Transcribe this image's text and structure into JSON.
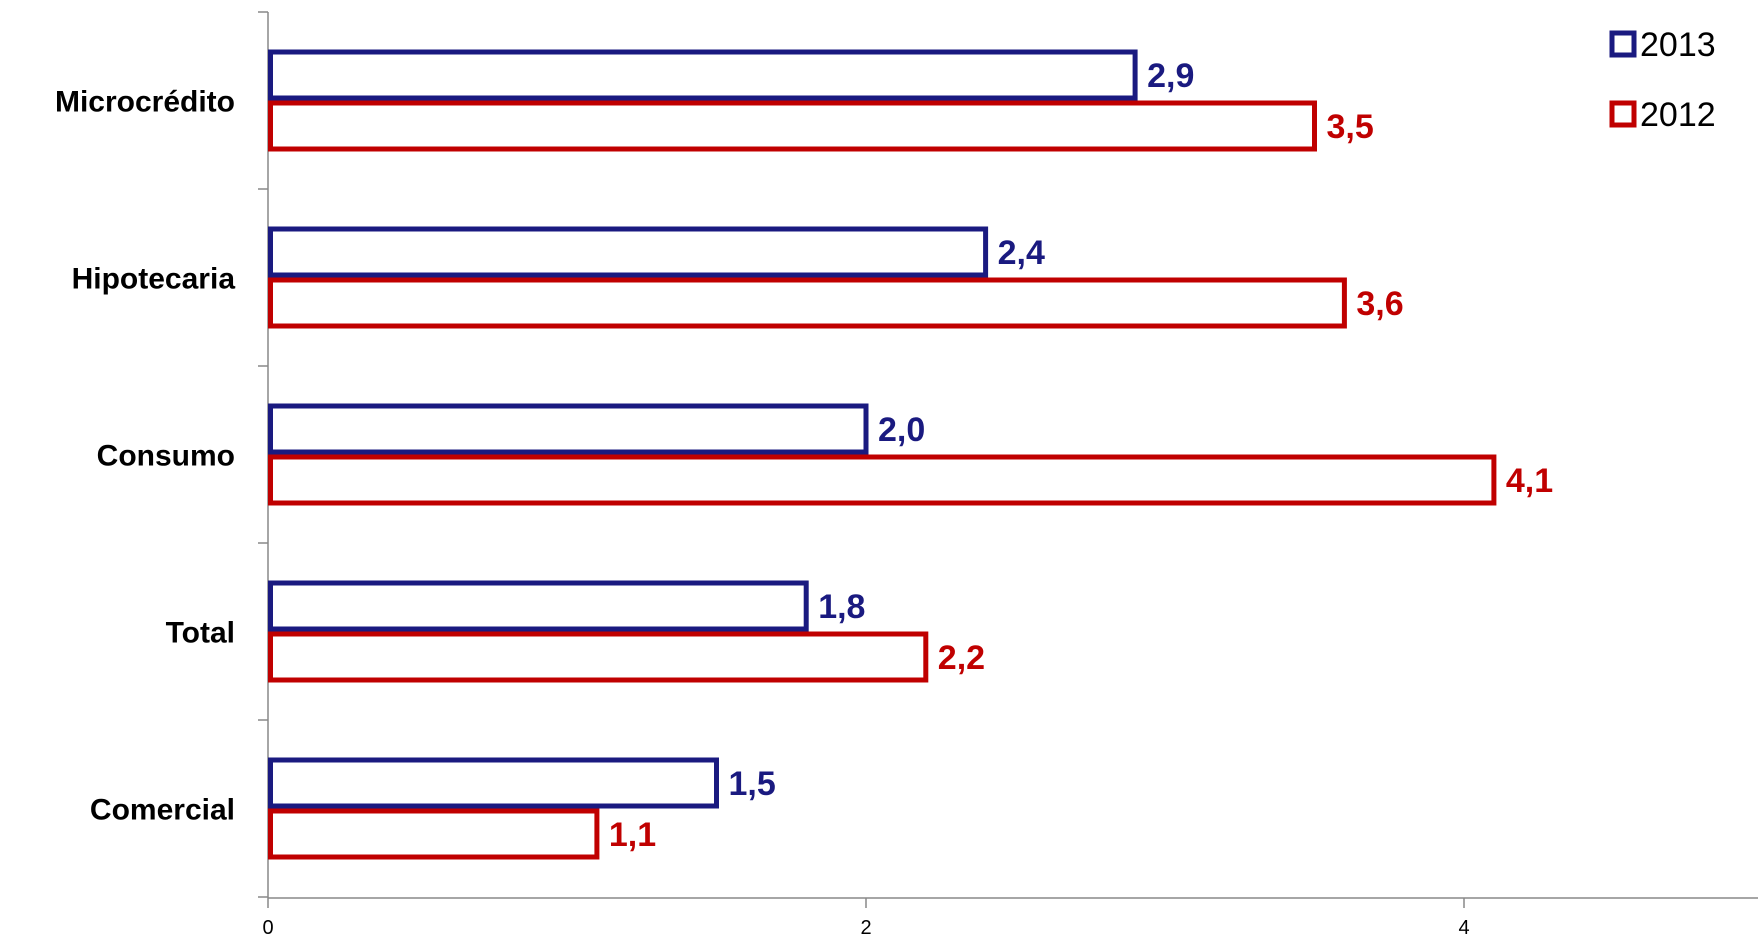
{
  "chart_data": {
    "type": "bar",
    "orientation": "horizontal",
    "categories": [
      "Microcrédito",
      "Hipotecaria",
      "Consumo",
      "Total",
      "Comercial"
    ],
    "series": [
      {
        "name": "2013",
        "color": "#1a1a80",
        "values": [
          2.9,
          2.4,
          2.0,
          1.8,
          1.5
        ],
        "labels": [
          "2,9",
          "2,4",
          "2,0",
          "1,8",
          "1,5"
        ]
      },
      {
        "name": "2012",
        "color": "#c00000",
        "values": [
          3.5,
          3.6,
          4.1,
          2.2,
          1.1
        ],
        "labels": [
          "3,5",
          "3,6",
          "4,1",
          "2,2",
          "1,1"
        ]
      }
    ],
    "xlim": [
      0,
      5
    ],
    "xticks": [
      "0",
      "2",
      "4"
    ],
    "title": "",
    "xlabel": "",
    "ylabel": "",
    "grid": false,
    "bar_fill": "none",
    "legend": {
      "position": "top-right"
    }
  }
}
